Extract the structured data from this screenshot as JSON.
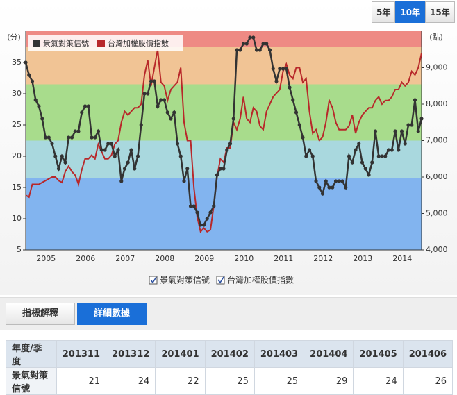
{
  "range_buttons": {
    "options": [
      "5年",
      "10年",
      "15年"
    ],
    "selected": 1
  },
  "chart_data": {
    "type": "line",
    "ylabel": "(分)",
    "y2label": "(點)",
    "categories": [
      null,
      null,
      null,
      null,
      null,
      null,
      null,
      "2005",
      null,
      null,
      null,
      null,
      null,
      null,
      null,
      null,
      null,
      null,
      null,
      "2006",
      null,
      null,
      null,
      null,
      null,
      null,
      null,
      null,
      null,
      null,
      null,
      "2007",
      null,
      null,
      null,
      null,
      null,
      null,
      null,
      null,
      null,
      null,
      null,
      "2008",
      null,
      null,
      null,
      null,
      null,
      null,
      null,
      null,
      null,
      null,
      null,
      "2009",
      null,
      null,
      null,
      null,
      null,
      null,
      null,
      null,
      null,
      null,
      null,
      "2010",
      null,
      null,
      null,
      null,
      null,
      null,
      null,
      null,
      null,
      null,
      null,
      "2011",
      null,
      null,
      null,
      null,
      null,
      null,
      null,
      null,
      null,
      null,
      null,
      "2012",
      null,
      null,
      null,
      null,
      null,
      null,
      null,
      null,
      null,
      null,
      null,
      "2013",
      null,
      null,
      null,
      null,
      null,
      null,
      null,
      null,
      null,
      null,
      null,
      "2014",
      null,
      null,
      null,
      null,
      null
    ],
    "series": [
      {
        "name": "景氣對策信號",
        "color": "#333333",
        "markers": true,
        "values": [
          35,
          33,
          32,
          29,
          28,
          26,
          23,
          23,
          22,
          20,
          18,
          20,
          19,
          23,
          23,
          24,
          24,
          27,
          28,
          28,
          23,
          23,
          24,
          21,
          21,
          22,
          22,
          20,
          21,
          16,
          18,
          19,
          21,
          18,
          20,
          25,
          30,
          30,
          32,
          32,
          28,
          29,
          29,
          27,
          26,
          27,
          22,
          20,
          16,
          18,
          12,
          12,
          11,
          9,
          9,
          10,
          11,
          12,
          17,
          18,
          18,
          21,
          22,
          26,
          37,
          37,
          38,
          38,
          39,
          39,
          37,
          37,
          38,
          38,
          37,
          34,
          32,
          34,
          34,
          34,
          31,
          29,
          27,
          25,
          23,
          20,
          21,
          20,
          16,
          15,
          14,
          16,
          15,
          15,
          16,
          16,
          16,
          15,
          20,
          19,
          21,
          22,
          19,
          18,
          17,
          19,
          24,
          20,
          20,
          20,
          21,
          21,
          24,
          21,
          24,
          22,
          25,
          25,
          29,
          24,
          26
        ]
      },
      {
        "name": "台灣加權股價指數",
        "color": "#b8282a",
        "markers": false,
        "axis": "y2",
        "values": [
          5500,
          5450,
          5800,
          5800,
          5800,
          5850,
          5900,
          5950,
          6000,
          6000,
          5900,
          5850,
          6150,
          6300,
          6150,
          6050,
          5800,
          6200,
          6500,
          6500,
          6600,
          6500,
          6900,
          6700,
          6500,
          6500,
          6600,
          6900,
          7000,
          7500,
          7800,
          7700,
          7800,
          7900,
          7900,
          8000,
          8800,
          9200,
          8500,
          9000,
          9500,
          8600,
          8500,
          8100,
          8400,
          8500,
          8600,
          9000,
          7500,
          7000,
          7000,
          5700,
          4900,
          4500,
          4600,
          4500,
          4550,
          5200,
          6000,
          6500,
          6400,
          6800,
          6800,
          7500,
          7300,
          7600,
          8200,
          7600,
          7500,
          7900,
          7800,
          7400,
          7300,
          7800,
          8000,
          8200,
          8300,
          8400,
          8900,
          9100,
          8800,
          8700,
          9000,
          9000,
          8600,
          8700,
          7800,
          7200,
          7300,
          7000,
          7100,
          7500,
          8100,
          7900,
          7500,
          7300,
          7300,
          7300,
          7400,
          7700,
          7200,
          7500,
          7700,
          7800,
          7900,
          7900,
          8100,
          8200,
          8000,
          8100,
          8100,
          8200,
          8400,
          8400,
          8600,
          8500,
          8600,
          8900,
          8800,
          9000,
          9400
        ]
      }
    ],
    "ylim": [
      5,
      40
    ],
    "yticks": [
      5,
      10,
      15,
      20,
      25,
      30,
      35
    ],
    "y2lim": [
      4000,
      10000
    ],
    "y2ticks": [
      {
        "value": 4000,
        "label": "4,000"
      },
      {
        "value": 5000,
        "label": "5,000"
      },
      {
        "value": 6000,
        "label": "6,000"
      },
      {
        "value": 7000,
        "label": "7,000"
      },
      {
        "value": 8000,
        "label": "8,000"
      },
      {
        "value": 9000,
        "label": "9,000"
      }
    ],
    "bands": [
      {
        "from": 37.5,
        "to": 40,
        "color": "#ee8a84"
      },
      {
        "from": 31.5,
        "to": 37.5,
        "color": "#f1c495"
      },
      {
        "from": 22.5,
        "to": 31.5,
        "color": "#a8dc8c"
      },
      {
        "from": 16.5,
        "to": 22.5,
        "color": "#a9d8de"
      },
      {
        "from": 5,
        "to": 16.5,
        "color": "#82b4ef"
      }
    ],
    "legend": "top-left"
  },
  "tabs": {
    "options": [
      "指標解釋",
      "詳細數據"
    ],
    "selected": 1
  },
  "table": {
    "header": [
      "年度/季度",
      "201311",
      "201312",
      "201401",
      "201402",
      "201403",
      "201404",
      "201405",
      "201406"
    ],
    "rows": [
      [
        "景氣對策信號",
        21,
        24,
        22,
        25,
        25,
        29,
        24,
        26
      ]
    ]
  }
}
